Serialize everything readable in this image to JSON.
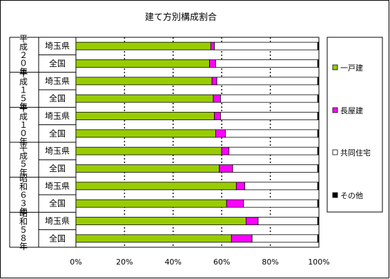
{
  "chart_data": {
    "type": "bar",
    "orientation": "horizontal",
    "stacked": "percent",
    "title": "建て方別構成割合",
    "groups": [
      {
        "label": "平成２０年",
        "rows": [
          {
            "label": "埼玉県",
            "values": [
              55.5,
              1.5,
              42.5,
              0.5
            ]
          },
          {
            "label": "全国",
            "values": [
              55.0,
              2.5,
              42.0,
              0.5
            ]
          }
        ]
      },
      {
        "label": "平成１５年",
        "rows": [
          {
            "label": "埼玉県",
            "values": [
              56.0,
              2.0,
              41.5,
              0.5
            ]
          },
          {
            "label": "全国",
            "values": [
              56.5,
              3.0,
              40.0,
              0.5
            ]
          }
        ]
      },
      {
        "label": "平成１０年",
        "rows": [
          {
            "label": "埼玉県",
            "values": [
              57.0,
              2.5,
              40.0,
              0.5
            ]
          },
          {
            "label": "全国",
            "values": [
              57.5,
              4.0,
              38.0,
              0.5
            ]
          }
        ]
      },
      {
        "label": "平成５年",
        "rows": [
          {
            "label": "埼玉県",
            "values": [
              60.0,
              3.0,
              36.5,
              0.5
            ]
          },
          {
            "label": "全国",
            "values": [
              59.0,
              5.5,
              35.0,
              0.5
            ]
          }
        ]
      },
      {
        "label": "昭和６３年",
        "rows": [
          {
            "label": "埼玉県",
            "values": [
              66.0,
              3.5,
              30.0,
              0.5
            ]
          },
          {
            "label": "全国",
            "values": [
              62.0,
              7.0,
              30.5,
              0.5
            ]
          }
        ]
      },
      {
        "label": "昭和５８年",
        "rows": [
          {
            "label": "埼玉県",
            "values": [
              70.0,
              5.0,
              24.5,
              0.5
            ]
          },
          {
            "label": "全国",
            "values": [
              64.0,
              8.5,
              27.0,
              0.5
            ]
          }
        ]
      }
    ],
    "series": [
      {
        "name": "一戸建",
        "color": "#99cc00"
      },
      {
        "name": "長屋建",
        "color": "#ff00ff"
      },
      {
        "name": "共同住宅",
        "color": "#ffffff"
      },
      {
        "name": "その他",
        "color": "#000000"
      }
    ],
    "x_ticks": [
      "0%",
      "20%",
      "40%",
      "60%",
      "80%",
      "100%"
    ],
    "xlim": [
      0,
      100
    ],
    "grid": "vertical-dotted",
    "legend_position": "right"
  }
}
